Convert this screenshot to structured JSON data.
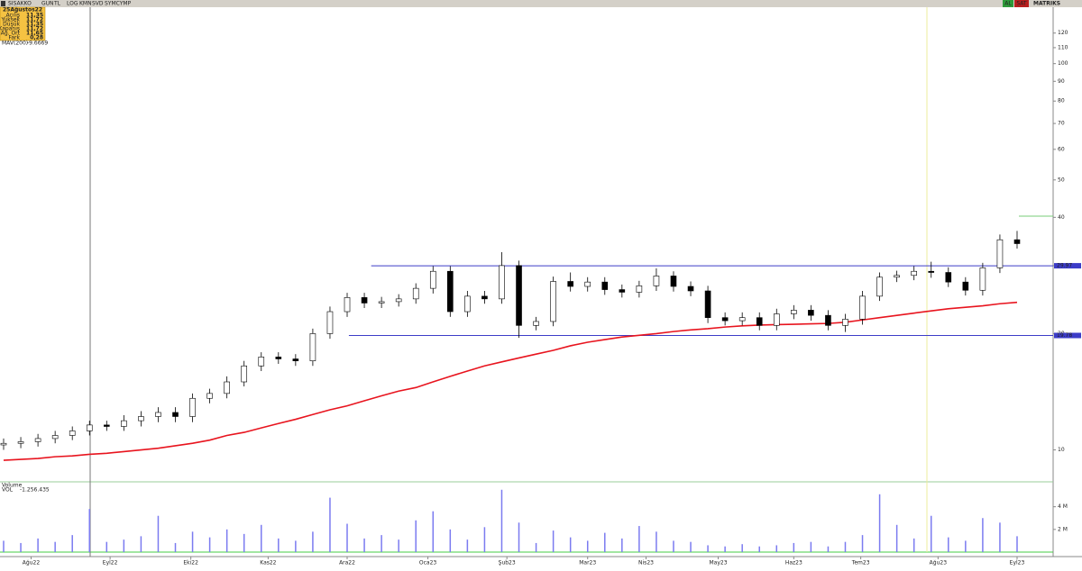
{
  "toolbar": {
    "symbol": "SISAKKO",
    "buttons": [
      "GUN",
      "TL",
      "LOG",
      "KMN",
      "SVD",
      "SYMCYMP"
    ],
    "buy": "AL",
    "sell": "SAT",
    "brand": "MATRIKS"
  },
  "info_panel": {
    "date": "25Ağustos22",
    "rows": [
      [
        "Açılış",
        "11,35"
      ],
      [
        "Yüksek",
        "11,72"
      ],
      [
        "Düşük",
        "11,35"
      ],
      [
        "Kapanış",
        "11,72"
      ],
      [
        "Ağ. Ort",
        "11,65"
      ],
      [
        "Fark",
        "0,28"
      ]
    ]
  },
  "chart_data": [
    {
      "type": "candlestick",
      "log_scale": true,
      "x": [
        0,
        1,
        2,
        3,
        4,
        5,
        6,
        7,
        8,
        9,
        10,
        11,
        12,
        13,
        14,
        15,
        16,
        17,
        18,
        19,
        20,
        21,
        22,
        23,
        24,
        25,
        26,
        27,
        28,
        29,
        30,
        31,
        32,
        33,
        34,
        35,
        36,
        37,
        38,
        39,
        40,
        41,
        42,
        43,
        44,
        45,
        46,
        47,
        48,
        49,
        50,
        51,
        52,
        53,
        54,
        55,
        56,
        57,
        58,
        59
      ],
      "xlim": [
        0,
        61.1
      ],
      "xticks": [
        {
          "value": 1.6,
          "label": "Ağu22"
        },
        {
          "value": 6.2,
          "label": "Eyl22"
        },
        {
          "value": 10.9,
          "label": "Eki22"
        },
        {
          "value": 15.4,
          "label": "Kas22"
        },
        {
          "value": 20,
          "label": "Ara22"
        },
        {
          "value": 24.7,
          "label": "Oca23"
        },
        {
          "value": 29.3,
          "label": "Şub23"
        },
        {
          "value": 34,
          "label": "Mar23"
        },
        {
          "value": 37.4,
          "label": "Nis23"
        },
        {
          "value": 41.6,
          "label": "May23"
        },
        {
          "value": 46,
          "label": "Haz23"
        },
        {
          "value": 49.9,
          "label": "Tem23"
        },
        {
          "value": 54.4,
          "label": "Ağu23"
        },
        {
          "value": 59,
          "label": "Eyl23"
        }
      ],
      "open": [
        10.3,
        10.4,
        10.5,
        10.7,
        10.9,
        11.2,
        11.6,
        11.5,
        11.9,
        12.2,
        12.5,
        12.2,
        13.6,
        14.0,
        15.0,
        16.5,
        17.4,
        17.2,
        17.0,
        20.0,
        22.8,
        24.8,
        24.0,
        24.2,
        24.6,
        26.2,
        29.0,
        22.8,
        25.0,
        24.6,
        30.0,
        21.0,
        21.5,
        27.3,
        26.5,
        27.2,
        26.0,
        25.6,
        26.6,
        28.2,
        26.5,
        25.8,
        22.0,
        21.6,
        22.0,
        21.0,
        22.5,
        23.0,
        22.3,
        21.0,
        21.8,
        25.0,
        28.0,
        28.3,
        29.0,
        28.8,
        27.2,
        25.9,
        29.6,
        35.0
      ],
      "high": [
        10.7,
        10.8,
        11.0,
        11.2,
        11.5,
        11.9,
        11.9,
        12.3,
        12.6,
        12.9,
        12.9,
        14.0,
        14.4,
        15.5,
        17.0,
        17.9,
        17.9,
        17.7,
        20.6,
        23.5,
        25.5,
        25.5,
        24.9,
        25.3,
        27.0,
        29.9,
        29.9,
        25.8,
        25.8,
        32.5,
        30.9,
        22.1,
        28.1,
        28.8,
        28.0,
        28.0,
        26.8,
        27.4,
        29.5,
        29.0,
        27.3,
        26.6,
        22.7,
        22.7,
        22.7,
        23.2,
        23.7,
        23.7,
        23.0,
        22.5,
        25.8,
        28.8,
        29.1,
        29.9,
        30.7,
        29.7,
        28.0,
        30.5,
        36.1,
        36.9
      ],
      "low": [
        10.0,
        10.1,
        10.2,
        10.4,
        10.6,
        10.9,
        11.2,
        11.2,
        11.5,
        11.8,
        11.8,
        11.8,
        13.2,
        13.6,
        14.6,
        16.0,
        16.7,
        16.5,
        16.5,
        19.4,
        22.1,
        23.3,
        23.3,
        23.5,
        23.9,
        25.4,
        22.1,
        22.1,
        23.9,
        23.9,
        19.5,
        20.4,
        20.9,
        25.7,
        25.7,
        25.2,
        24.8,
        24.8,
        25.8,
        25.7,
        25.0,
        21.3,
        21.0,
        21.0,
        20.4,
        20.4,
        21.8,
        21.6,
        20.4,
        20.2,
        21.1,
        24.3,
        27.2,
        27.5,
        27.9,
        26.4,
        25.1,
        25.1,
        28.7,
        33.2
      ],
      "close": [
        10.4,
        10.5,
        10.7,
        10.9,
        11.2,
        11.6,
        11.5,
        11.9,
        12.2,
        12.5,
        12.2,
        13.6,
        14.0,
        15.0,
        16.5,
        17.4,
        17.2,
        17.0,
        20.0,
        22.8,
        24.8,
        24.0,
        24.2,
        24.6,
        26.2,
        29.0,
        22.8,
        25.0,
        24.6,
        30.0,
        21.0,
        21.5,
        27.3,
        26.5,
        27.2,
        26.0,
        25.6,
        26.6,
        28.2,
        26.5,
        25.8,
        22.0,
        21.6,
        22.0,
        21.0,
        22.5,
        23.0,
        22.3,
        21.0,
        21.8,
        25.0,
        28.0,
        28.3,
        29.0,
        28.8,
        27.2,
        25.9,
        29.6,
        35.0,
        34.2
      ],
      "up_color": "#ffffff",
      "down_color": "#000000",
      "series": [
        {
          "name": "MAV(200)",
          "value_label": "-9.6669",
          "color": "#e8141e",
          "values": [
            9.4,
            9.45,
            9.5,
            9.6,
            9.65,
            9.74,
            9.8,
            9.9,
            10.0,
            10.1,
            10.25,
            10.4,
            10.6,
            10.9,
            11.1,
            11.4,
            11.7,
            12.0,
            12.35,
            12.7,
            13.0,
            13.4,
            13.8,
            14.2,
            14.5,
            15.0,
            15.5,
            16.0,
            16.5,
            16.9,
            17.3,
            17.7,
            18.1,
            18.6,
            19.0,
            19.3,
            19.6,
            19.8,
            20.0,
            20.25,
            20.45,
            20.6,
            20.8,
            20.95,
            21.05,
            21.1,
            21.15,
            21.2,
            21.25,
            21.4,
            21.7,
            22.0,
            22.3,
            22.6,
            22.9,
            23.2,
            23.4,
            23.6,
            23.9,
            24.1
          ]
        }
      ],
      "levels": [
        {
          "value": 29.97,
          "label": "29.97",
          "from": 21.4,
          "color": "#3c3cc8"
        },
        {
          "value": 19.78,
          "label": "19.78",
          "from": 20.1,
          "color": "#3c3cc8"
        }
      ],
      "ylim": [
        8.4,
        140
      ],
      "yticks": [
        10,
        20,
        30,
        40,
        50,
        60,
        70,
        80,
        90,
        100,
        110,
        120
      ]
    },
    {
      "type": "bar",
      "title": "Volume",
      "series_label": "VOL",
      "value_label": "-1.256.435",
      "color": "#7b7bf0",
      "values": [
        1.0,
        0.8,
        1.2,
        0.9,
        1.5,
        3.8,
        0.9,
        1.1,
        1.4,
        3.2,
        0.8,
        1.8,
        1.3,
        2.0,
        1.6,
        2.4,
        1.2,
        1.0,
        1.8,
        4.8,
        2.5,
        1.2,
        1.5,
        1.1,
        2.8,
        3.6,
        2.0,
        1.1,
        2.2,
        5.5,
        2.6,
        0.8,
        1.9,
        1.3,
        1.0,
        1.7,
        1.2,
        2.3,
        1.8,
        1.0,
        0.9,
        0.6,
        0.5,
        0.7,
        0.5,
        0.6,
        0.8,
        0.9,
        0.5,
        0.9,
        1.5,
        5.1,
        2.4,
        1.2,
        3.2,
        1.3,
        1.0,
        3.0,
        2.6,
        1.4
      ],
      "ylim": [
        0,
        5.8
      ],
      "yticks": [
        {
          "value": 2,
          "label": "2 M"
        },
        {
          "value": 4,
          "label": "4 M"
        }
      ]
    }
  ]
}
